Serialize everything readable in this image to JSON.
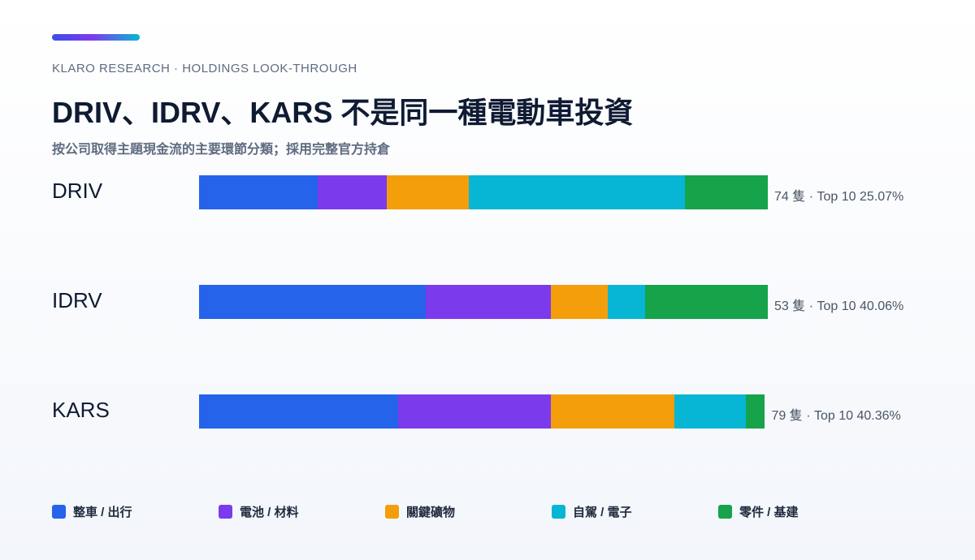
{
  "header": {
    "kicker": "KLARO RESEARCH · HOLDINGS LOOK-THROUGH",
    "title": "DRIV、IDRV、KARS 不是同一種電動車投資",
    "subtitle": "按公司取得主題現金流的主要環節分類；採用完整官方持倉"
  },
  "colors": {
    "accent_gradient": [
      "#3b4fe6",
      "#7c3aed",
      "#0bb5d6"
    ],
    "categories": [
      "#2563eb",
      "#7c3aed",
      "#f59e0b",
      "#06b6d4",
      "#16a34a"
    ]
  },
  "chart_data": {
    "type": "bar",
    "orientation": "horizontal",
    "stacked": true,
    "normalized": true,
    "categories": [
      "DRIV",
      "IDRV",
      "KARS"
    ],
    "series": [
      {
        "name": "整車 / 出行",
        "values": [
          20.8,
          39.8,
          35.0
        ]
      },
      {
        "name": "電池 / 材料",
        "values": [
          12.2,
          22.0,
          26.8
        ]
      },
      {
        "name": "關鍵礦物",
        "values": [
          14.4,
          10.0,
          21.8
        ]
      },
      {
        "name": "自駕 / 電子",
        "values": [
          38.0,
          6.6,
          12.5
        ]
      },
      {
        "name": "零件 / 基建",
        "values": [
          14.6,
          21.6,
          3.4
        ]
      }
    ],
    "annotations": [
      "74 隻 · Top 10 25.07%",
      "53 隻 · Top 10 40.06%",
      "79 隻 · Top 10 40.36%"
    ],
    "legend_position": "bottom",
    "grid": false
  }
}
